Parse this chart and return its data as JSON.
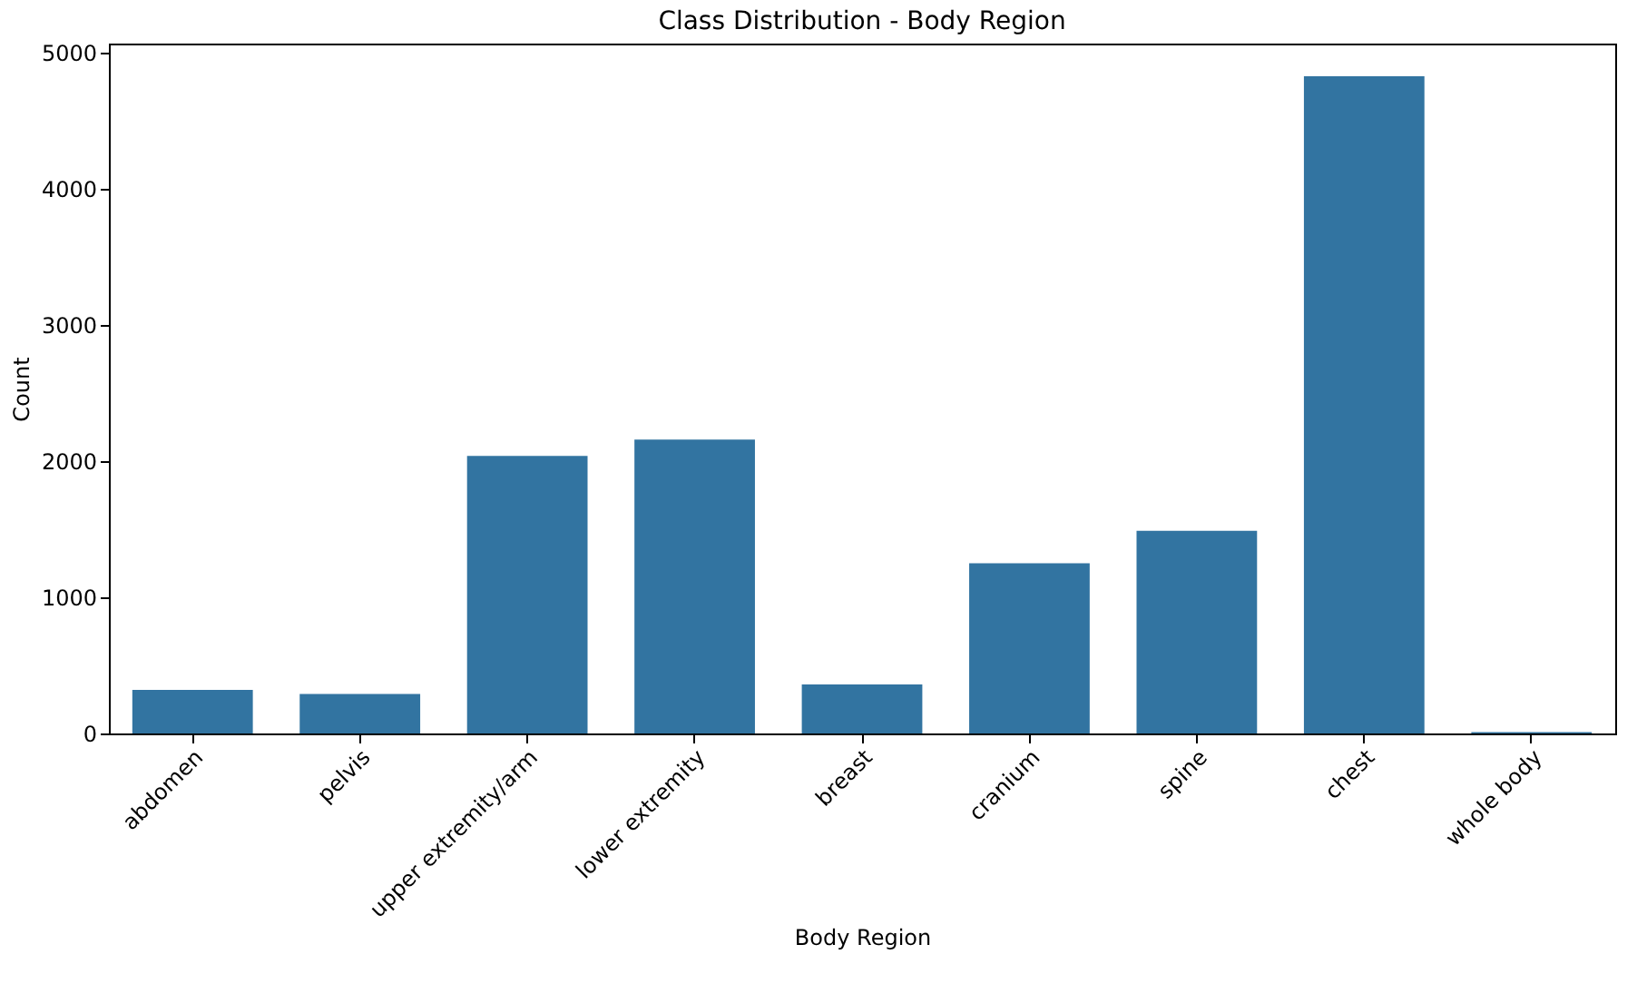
{
  "chart_data": {
    "type": "bar",
    "title": "Class Distribution - Body Region",
    "xlabel": "Body Region",
    "ylabel": "Count",
    "categories": [
      "abdomen",
      "pelvis",
      "upper extremity/arm",
      "lower extremity",
      "breast",
      "cranium",
      "spine",
      "chest",
      "whole body"
    ],
    "values": [
      320,
      290,
      2040,
      2160,
      360,
      1250,
      1490,
      4830,
      10
    ],
    "color": "#3274a1",
    "ylim": [
      0,
      5070
    ],
    "yticks": [
      0,
      1000,
      2000,
      3000,
      4000,
      5000
    ],
    "grid": false
  }
}
